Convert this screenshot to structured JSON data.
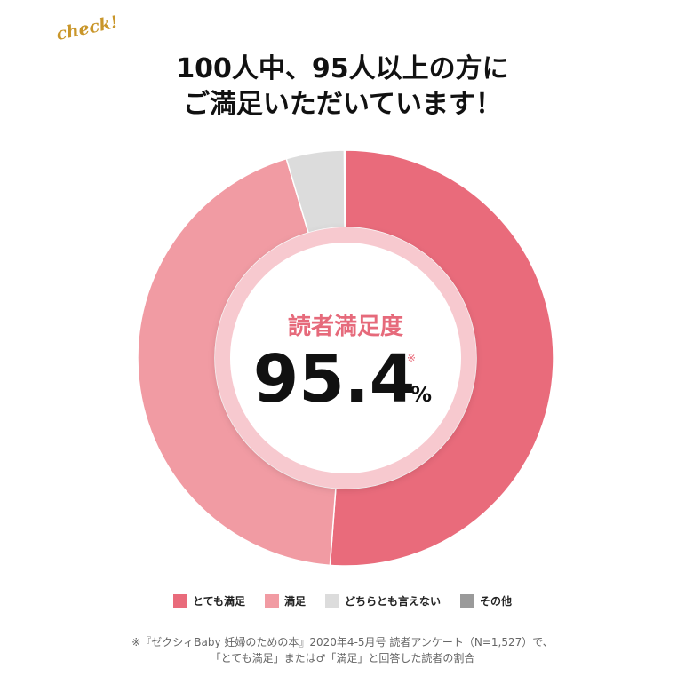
{
  "badge": "check!",
  "headline": {
    "line1": "100人中、95人以上の方に",
    "line2": "ご満足いただいています！"
  },
  "center": {
    "label": "読者満足度",
    "value": "95.4",
    "unit": "%",
    "note_mark": "※"
  },
  "chart_data": {
    "type": "pie",
    "categories": [
      "とても満足",
      "満足",
      "どちらとも言えない",
      "その他"
    ],
    "values": [
      51.2,
      44.2,
      4.5,
      0.1
    ],
    "colors": [
      "#e96b7b",
      "#f19ba3",
      "#dcdcdc",
      "#9a9a9a"
    ],
    "title": "",
    "legend": "bottom"
  },
  "footnote": {
    "line1": "※『ゼクシィBaby 妊婦のための本』2020年4-5月号 読者アンケート（N=1,527）で、",
    "line2": "「とても満足」または♂「満足」と回答した読者の割合"
  }
}
